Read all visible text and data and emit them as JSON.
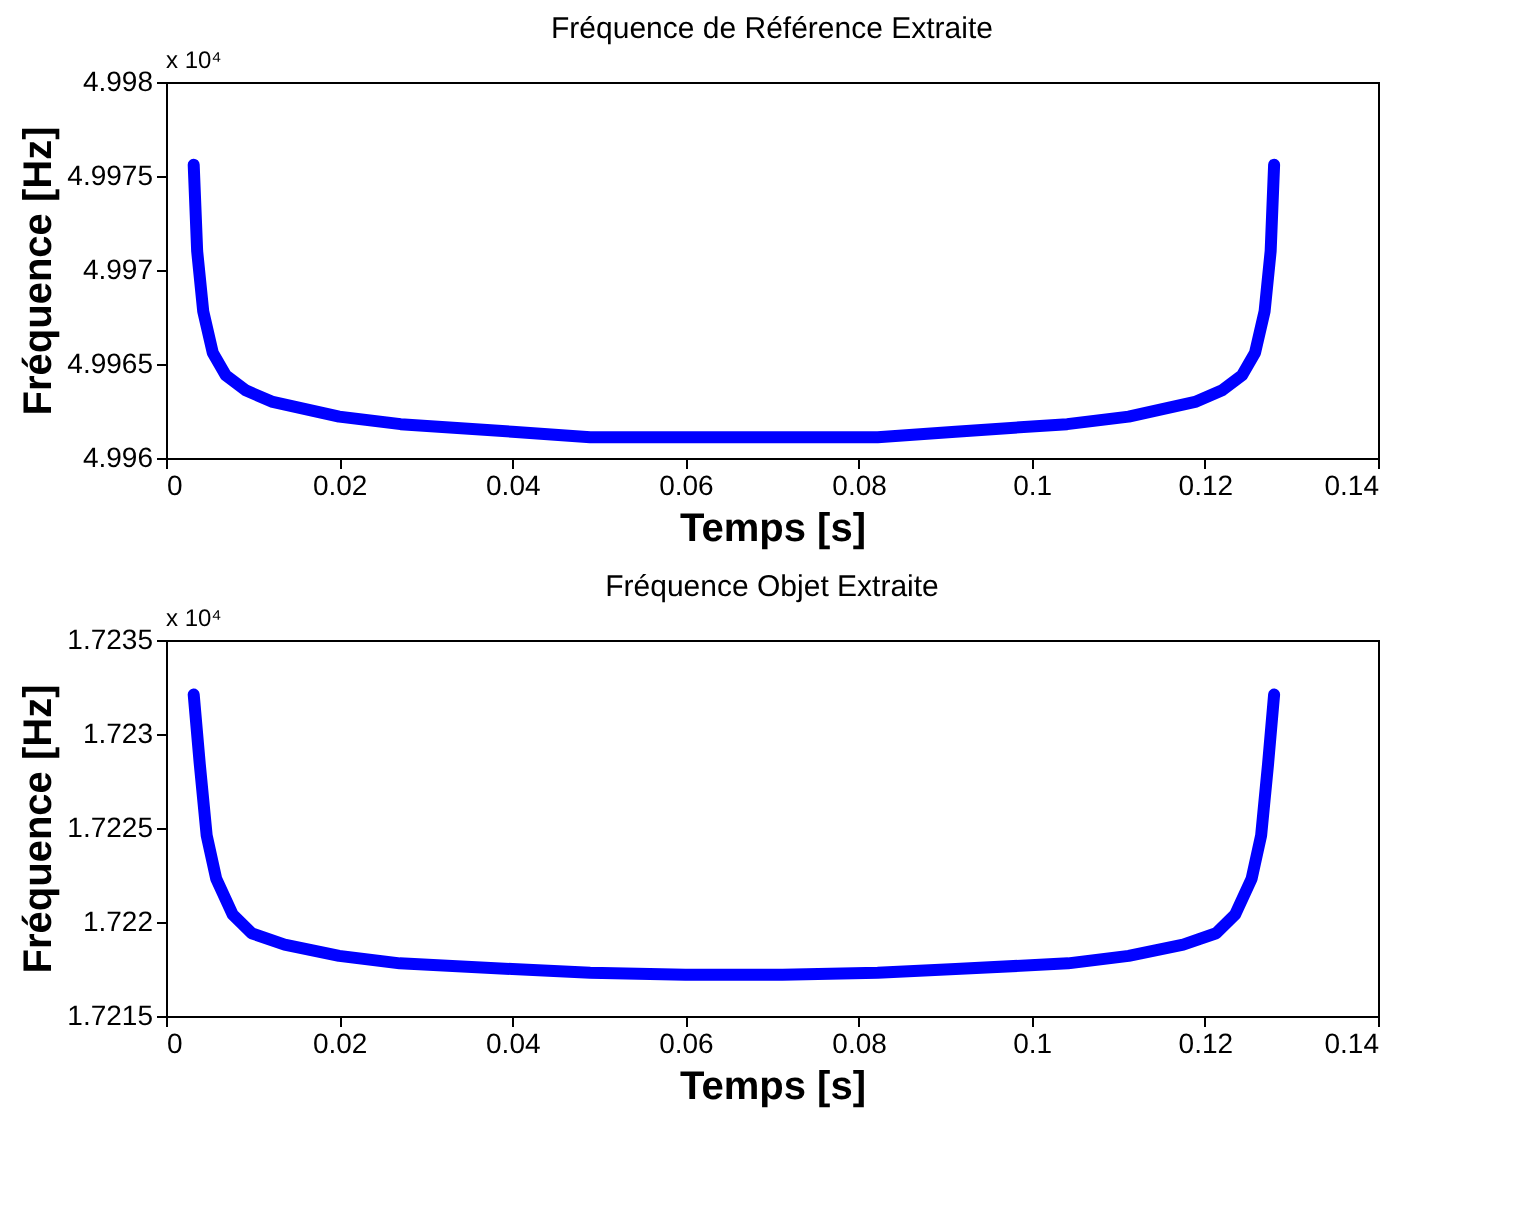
{
  "chart_data": [
    {
      "type": "line",
      "title": "Fréquence de Référence Extraite",
      "xlabel": "Temps [s]",
      "ylabel": "Fréquence [Hz]",
      "annotations": [
        "x 10⁴"
      ],
      "series": [
        {
          "color": "#0000ff",
          "x": [
            0.0032,
            0.0036,
            0.0043,
            0.0054,
            0.0069,
            0.0092,
            0.0122,
            0.02,
            0.0271,
            0.04,
            0.049,
            0.06,
            0.0712,
            0.0822,
            0.0912,
            0.1041,
            0.1112,
            0.119,
            0.122,
            0.1243,
            0.1258,
            0.1269,
            0.1276,
            0.128
          ],
          "values": [
            4.99756,
            4.9971,
            4.99678,
            4.99656,
            4.99644,
            4.99636,
            4.9963,
            4.99622,
            4.99618,
            4.99614,
            4.99611,
            4.99611,
            4.99611,
            4.99611,
            4.99614,
            4.99618,
            4.99622,
            4.9963,
            4.99636,
            4.99644,
            4.99656,
            4.99678,
            4.9971,
            4.99756
          ]
        }
      ],
      "xlim": [
        0,
        0.14
      ],
      "xticks": [
        0,
        0.02,
        0.04,
        0.06,
        0.08,
        0.1,
        0.12,
        0.14
      ],
      "ylim": [
        4.996,
        4.998
      ],
      "yticks": [
        4.996,
        4.9965,
        4.997,
        4.9975,
        4.998
      ],
      "grid": false,
      "marker": "none",
      "line_style": "solid"
    },
    {
      "type": "line",
      "title": "Fréquence Objet Extraite",
      "xlabel": "Temps [s]",
      "ylabel": "Fréquence [Hz]",
      "annotations": [
        "x 10⁴"
      ],
      "series": [
        {
          "color": "#0000ff",
          "x": [
            0.0032,
            0.0039,
            0.0047,
            0.0058,
            0.0077,
            0.0099,
            0.0137,
            0.02,
            0.027,
            0.04,
            0.049,
            0.06,
            0.0712,
            0.0822,
            0.0912,
            0.1042,
            0.1112,
            0.1175,
            0.1213,
            0.1235,
            0.1254,
            0.1265,
            0.1273,
            0.128
          ],
          "values": [
            1.72321,
            1.72284,
            1.72246,
            1.72223,
            1.72204,
            1.72194,
            1.72188,
            1.72182,
            1.72178,
            1.72175,
            1.72173,
            1.72172,
            1.72172,
            1.72173,
            1.72175,
            1.72178,
            1.72182,
            1.72188,
            1.72194,
            1.72204,
            1.72223,
            1.72246,
            1.72284,
            1.72321
          ]
        }
      ],
      "xlim": [
        0,
        0.14
      ],
      "xticks": [
        0,
        0.02,
        0.04,
        0.06,
        0.08,
        0.1,
        0.12,
        0.14
      ],
      "ylim": [
        1.7215,
        1.7235
      ],
      "yticks": [
        1.7215,
        1.722,
        1.7225,
        1.723,
        1.7235
      ],
      "grid": false,
      "marker": "none",
      "line_style": "solid"
    }
  ]
}
